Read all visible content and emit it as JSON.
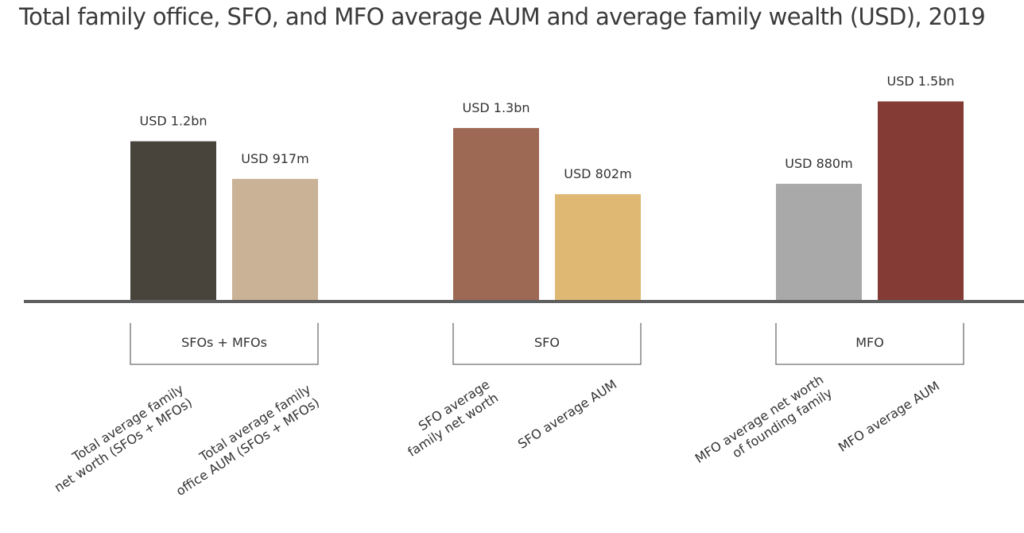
{
  "chart_data": {
    "type": "bar",
    "title": "Total family office, SFO, and MFO average AUM and average family wealth (USD), 2019",
    "xlabel": "",
    "ylabel": "",
    "ylim": [
      0,
      1.55
    ],
    "unit": "USD billions",
    "grid": false,
    "legend": "none",
    "bars": [
      {
        "category": "Total average family net worth (SFOs + MFOs)",
        "group": "SFOs + MFOs",
        "value": 1.2,
        "label": "USD 1.2bn",
        "color": "#48443c"
      },
      {
        "category": "Total average family office AUM (SFOs + MFOs)",
        "group": "SFOs + MFOs",
        "value": 0.917,
        "label": "USD 917m",
        "color": "#c9b296"
      },
      {
        "category": "SFO average family net worth",
        "group": "SFO",
        "value": 1.3,
        "label": "USD 1.3bn",
        "color": "#9d6854"
      },
      {
        "category": "SFO average AUM",
        "group": "SFO",
        "value": 0.802,
        "label": "USD 802m",
        "color": "#dfb974"
      },
      {
        "category": "MFO average net worth of founding family",
        "group": "MFO",
        "value": 0.88,
        "label": "USD 880m",
        "color": "#a9a9a9"
      },
      {
        "category": "MFO average AUM",
        "group": "MFO",
        "value": 1.5,
        "label": "USD 1.5bn",
        "color": "#843a35"
      }
    ],
    "groups": [
      "SFOs + MFOs",
      "SFO",
      "MFO"
    ]
  }
}
